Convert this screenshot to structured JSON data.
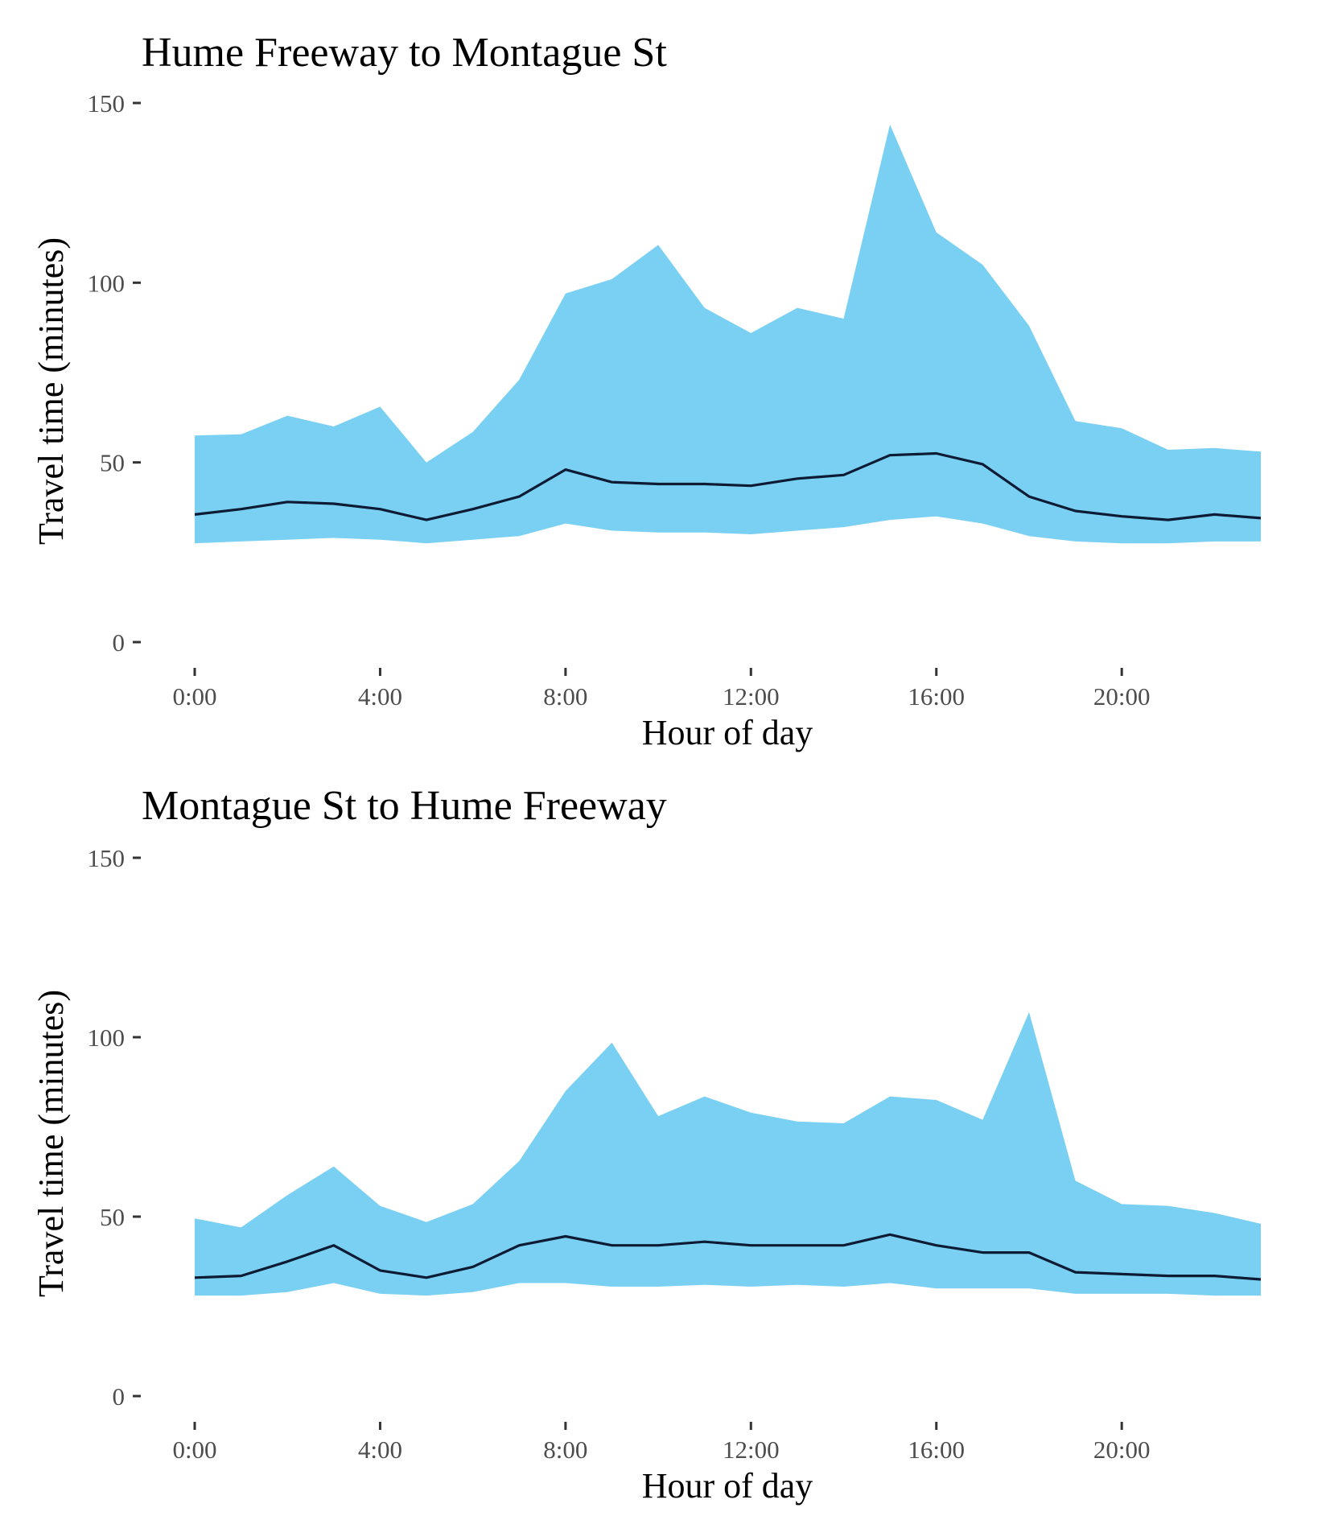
{
  "chart_data": [
    {
      "type": "area",
      "title": "Hume Freeway to Montague St",
      "xlabel": "Hour of day",
      "ylabel": "Travel time (minutes)",
      "ylim": [
        0,
        150
      ],
      "yticks": [
        0,
        50,
        100,
        150
      ],
      "ytick_labels": [
        "0",
        "50",
        "100",
        "150"
      ],
      "xlim": [
        0,
        23
      ],
      "xticks": [
        0,
        4,
        8,
        12,
        16,
        20
      ],
      "xtick_labels": [
        "0:00",
        "4:00",
        "8:00",
        "12:00",
        "16:00",
        "20:00"
      ],
      "grid": false,
      "x": [
        0,
        1,
        2,
        3,
        4,
        5,
        6,
        7,
        8,
        9,
        10,
        11,
        12,
        13,
        14,
        15,
        16,
        17,
        18,
        19,
        20,
        21,
        22,
        23
      ],
      "band_upper": [
        57.5,
        57.8,
        63.0,
        60.0,
        65.5,
        50.0,
        58.5,
        73.0,
        97.0,
        101.0,
        110.5,
        93.0,
        86.0,
        93.0,
        90.0,
        144.0,
        114.0,
        105.0,
        88.0,
        61.5,
        59.5,
        53.5,
        54.0,
        53.0
      ],
      "band_lower": [
        27.5,
        28.0,
        28.5,
        29.0,
        28.5,
        27.5,
        28.5,
        29.5,
        33.0,
        31.0,
        30.5,
        30.5,
        30.0,
        31.0,
        32.0,
        34.0,
        35.0,
        33.0,
        29.5,
        28.0,
        27.5,
        27.5,
        28.0,
        28.0
      ],
      "series": [
        {
          "values": [
            35.5,
            37.0,
            39.0,
            38.5,
            37.0,
            34.0,
            37.0,
            40.5,
            48.0,
            44.5,
            44.0,
            44.0,
            43.5,
            45.5,
            46.5,
            52.0,
            52.5,
            49.5,
            40.5,
            36.5,
            35.0,
            34.0,
            35.5,
            34.5
          ]
        }
      ],
      "colors": {
        "band": "#7ad0f2",
        "line": "#0d1b35"
      }
    },
    {
      "type": "area",
      "title": "Montague St to Hume Freeway",
      "xlabel": "Hour of day",
      "ylabel": "Travel time (minutes)",
      "ylim": [
        0,
        150
      ],
      "yticks": [
        0,
        50,
        100,
        150
      ],
      "ytick_labels": [
        "0",
        "50",
        "100",
        "150"
      ],
      "xlim": [
        0,
        23
      ],
      "xticks": [
        0,
        4,
        8,
        12,
        16,
        20
      ],
      "xtick_labels": [
        "0:00",
        "4:00",
        "8:00",
        "12:00",
        "16:00",
        "20:00"
      ],
      "grid": false,
      "x": [
        0,
        1,
        2,
        3,
        4,
        5,
        6,
        7,
        8,
        9,
        10,
        11,
        12,
        13,
        14,
        15,
        16,
        17,
        18,
        19,
        20,
        21,
        22,
        23
      ],
      "band_upper": [
        49.5,
        47.0,
        56.0,
        64.0,
        53.0,
        48.5,
        53.5,
        65.5,
        85.0,
        98.5,
        78.0,
        83.5,
        79.0,
        76.5,
        76.0,
        83.5,
        82.5,
        77.0,
        107.0,
        60.0,
        53.5,
        53.0,
        51.0,
        48.0
      ],
      "band_lower": [
        28.0,
        28.0,
        29.0,
        31.5,
        28.5,
        28.0,
        29.0,
        31.5,
        31.5,
        30.5,
        30.5,
        31.0,
        30.5,
        31.0,
        30.5,
        31.5,
        30.0,
        30.0,
        30.0,
        28.5,
        28.5,
        28.5,
        28.0,
        28.0
      ],
      "series": [
        {
          "values": [
            33.0,
            33.5,
            37.5,
            42.0,
            35.0,
            33.0,
            36.0,
            42.0,
            44.5,
            42.0,
            42.0,
            43.0,
            42.0,
            42.0,
            42.0,
            45.0,
            42.0,
            40.0,
            40.0,
            34.5,
            34.0,
            33.5,
            33.5,
            32.5
          ]
        }
      ],
      "colors": {
        "band": "#7ad0f2",
        "line": "#0d1b35"
      }
    }
  ]
}
